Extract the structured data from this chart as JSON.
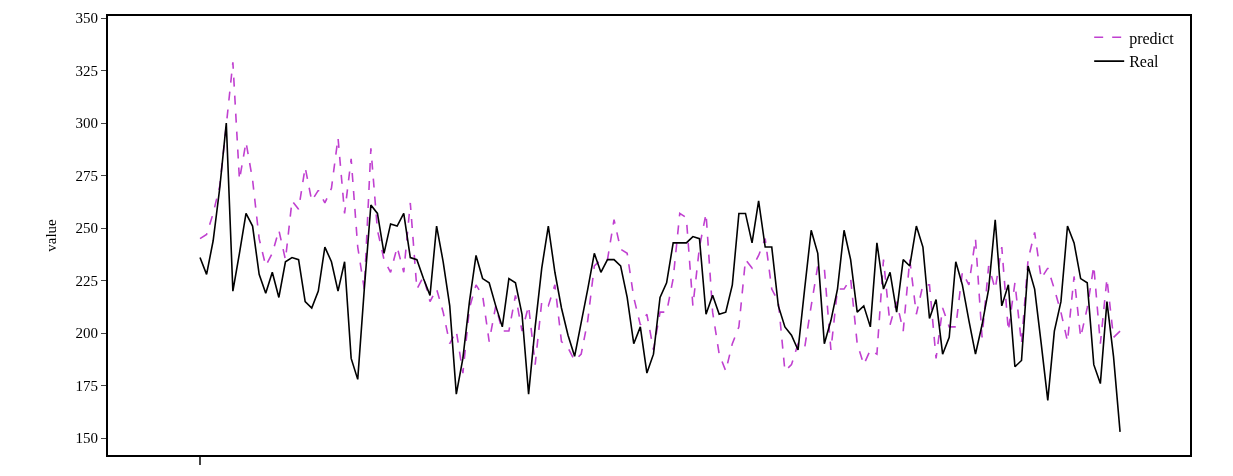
{
  "chart_data": {
    "type": "line",
    "ylabel": "value",
    "categories": [
      null,
      null,
      null,
      null,
      null,
      null,
      null,
      null,
      null,
      null,
      null,
      null,
      null,
      null,
      null,
      null,
      null,
      null,
      null,
      null,
      null,
      null,
      null,
      null,
      null,
      null,
      null,
      null,
      null,
      null,
      null,
      null,
      null,
      null,
      null,
      null,
      null,
      null,
      null,
      null,
      null,
      null,
      null,
      null,
      null,
      null,
      null,
      null,
      null,
      null,
      null,
      null,
      null,
      null,
      null,
      null,
      null,
      null,
      null,
      null,
      null,
      null,
      null,
      null,
      null,
      null,
      null,
      null,
      null,
      null,
      null,
      null,
      null,
      null,
      null,
      null,
      null,
      null,
      null,
      null,
      null,
      null,
      null,
      null,
      null,
      null,
      null,
      null,
      null,
      null,
      null,
      null,
      null,
      null,
      null,
      null,
      null,
      null,
      null,
      null,
      null,
      null,
      null,
      null,
      null,
      null,
      null,
      null,
      null,
      null,
      null,
      null,
      null,
      null,
      null,
      null,
      null,
      null,
      null,
      null,
      null,
      null,
      null,
      null,
      null,
      null,
      null,
      null,
      null,
      null,
      null,
      null,
      null,
      null,
      null,
      null,
      null,
      null,
      null,
      null,
      null
    ],
    "series": [
      {
        "name": "predict",
        "color": "#c040d0",
        "line_style": "dashed",
        "values": [
          245,
          247,
          257,
          270,
          299,
          329,
          273,
          291,
          273,
          245,
          232,
          238,
          249,
          235,
          263,
          259,
          279,
          263,
          268,
          262,
          269,
          293,
          257,
          283,
          241,
          221,
          288,
          249,
          235,
          229,
          241,
          229,
          262,
          221,
          227,
          215,
          221,
          210,
          195,
          201,
          181,
          212,
          223,
          218,
          196,
          213,
          201,
          201,
          218,
          201,
          213,
          185,
          215,
          213,
          223,
          196,
          193,
          187,
          190,
          206,
          232,
          235,
          235,
          254,
          240,
          238,
          217,
          204,
          209,
          192,
          210,
          210,
          226,
          257,
          255,
          213,
          241,
          257,
          210,
          190,
          182,
          195,
          203,
          235,
          231,
          237,
          245,
          221,
          215,
          182,
          185,
          195,
          193,
          213,
          232,
          231,
          192,
          221,
          221,
          226,
          195,
          185,
          192,
          190,
          235,
          204,
          215,
          201,
          235,
          209,
          223,
          223,
          188,
          212,
          203,
          203,
          229,
          223,
          245,
          198,
          232,
          221,
          241,
          201,
          224,
          195,
          235,
          248,
          226,
          231,
          221,
          210,
          196,
          227,
          198,
          212,
          232,
          195,
          226,
          198,
          201
        ]
      },
      {
        "name": "Real",
        "color": "#000000",
        "line_style": "solid",
        "values": [
          236,
          228,
          244,
          269,
          300,
          220,
          238,
          257,
          251,
          228,
          219,
          229,
          217,
          234,
          236,
          235,
          215,
          212,
          220,
          241,
          234,
          220,
          234,
          188,
          178,
          221,
          261,
          257,
          238,
          252,
          251,
          257,
          236,
          235,
          226,
          218,
          251,
          234,
          213,
          171,
          188,
          215,
          237,
          226,
          224,
          213,
          203,
          226,
          224,
          209,
          171,
          203,
          231,
          251,
          229,
          212,
          199,
          189,
          205,
          221,
          238,
          229,
          235,
          235,
          232,
          217,
          195,
          203,
          181,
          190,
          217,
          224,
          243,
          243,
          243,
          246,
          245,
          209,
          218,
          209,
          210,
          223,
          257,
          257,
          243,
          263,
          241,
          241,
          213,
          203,
          199,
          192,
          221,
          249,
          238,
          195,
          206,
          221,
          249,
          235,
          210,
          213,
          203,
          243,
          221,
          229,
          210,
          235,
          232,
          251,
          241,
          207,
          216,
          190,
          198,
          234,
          223,
          206,
          190,
          204,
          221,
          254,
          213,
          223,
          184,
          187,
          232,
          221,
          195,
          168,
          201,
          215,
          251,
          243,
          226,
          224,
          185,
          176,
          215,
          189,
          153
        ]
      }
    ],
    "ylim": [
      142,
      351
    ],
    "yticks": [
      150,
      175,
      200,
      225,
      250,
      275,
      300,
      325,
      350
    ],
    "tick_labels": "y",
    "legend": "top right",
    "marker": "none"
  }
}
